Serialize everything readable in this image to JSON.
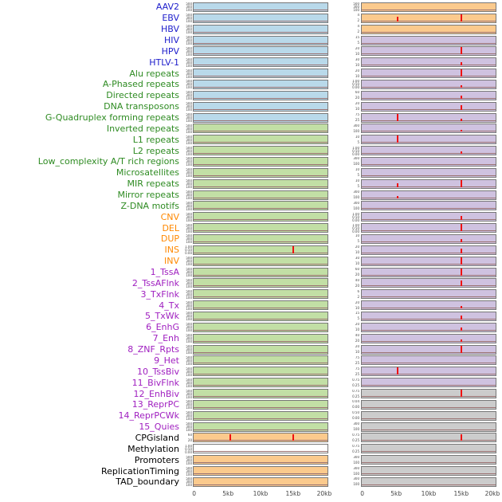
{
  "chart_data": {
    "type": "line",
    "description": "Genomic feature track figure: 44 labeled signal tracks in two panel columns over a 0-20kb window; red spikes mark feature peaks on flat near-zero baselines",
    "x_axis": {
      "ticks": [
        "0",
        "5kb",
        "10kb",
        "15kb",
        "20kb"
      ],
      "positions": [
        1,
        26,
        50,
        74,
        97
      ],
      "unit": "kb",
      "range_bp": [
        0,
        20000
      ]
    },
    "default_y_ticks": [
      "500",
      "300",
      "100"
    ],
    "colors": {
      "label": {
        "virus": "#2020cc",
        "repeat": "#2e8b22",
        "sv": "#ff8800",
        "chromatin": "#a020c0",
        "other": "#000000"
      },
      "bg": {
        "blue": "#b9d9ea",
        "green": "#c2dfa5",
        "orange": "#fbca8d",
        "purple": "#cfc2e0",
        "gray": "#cccccc",
        "white": "#ffffff"
      },
      "spike": "#ee1111",
      "baseline": "#9b7272",
      "panel_border": "#777777"
    },
    "groups": [
      {
        "name": "virus",
        "members": [
          "AAV2",
          "EBV",
          "HBV",
          "HIV",
          "HPV",
          "HTLV-1"
        ]
      },
      {
        "name": "repeat",
        "members": [
          "Alu repeats",
          "A-Phased repeats",
          "Directed repeats",
          "DNA transposons",
          "G-Quadruplex forming repeats",
          "Inverted repeats",
          "L1 repeats",
          "L2 repeats",
          "Low_complexity A/T rich regions",
          "Microsatellites",
          "MIR repeats",
          "Mirror repeats",
          "Z-DNA motifs"
        ]
      },
      {
        "name": "sv",
        "members": [
          "CNV",
          "DEL",
          "DUP",
          "INS",
          "INV"
        ]
      },
      {
        "name": "chromatin",
        "members": [
          "1_TssA",
          "2_TssAFlnk",
          "3_TxFlnk",
          "4_Tx",
          "5_TxWk",
          "6_EnhG",
          "7_Enh",
          "8_ZNF_Rpts",
          "9_Het",
          "10_TssBiv",
          "11_BivFlnk",
          "12_EnhBiv",
          "13_ReprPC",
          "14_ReprPCWk",
          "15_Quies"
        ]
      },
      {
        "name": "other",
        "members": [
          "CPGisland",
          "Methylation",
          "Promoters",
          "ReplicationTiming",
          "TAD_boundary"
        ]
      }
    ],
    "tracks": [
      {
        "l": "AAV2",
        "g": "virus",
        "lb": "blue",
        "rb": "orange",
        "rt": [
          "500",
          "300",
          "100"
        ],
        "ls": [],
        "rs": []
      },
      {
        "l": "EBV",
        "g": "virus",
        "lb": "blue",
        "rb": "orange",
        "rt": [
          "4",
          "2"
        ],
        "ls": [],
        "rs": [
          [
            26,
            55
          ],
          [
            74,
            92
          ]
        ]
      },
      {
        "l": "HBV",
        "g": "virus",
        "lb": "blue",
        "rb": "orange",
        "rt": [
          "4",
          "2"
        ],
        "ls": [],
        "rs": []
      },
      {
        "l": "HIV",
        "g": "virus",
        "lb": "blue",
        "rb": "purple",
        "rt": [
          "15",
          "5"
        ],
        "ls": [],
        "rs": []
      },
      {
        "l": "HPV",
        "g": "virus",
        "lb": "blue",
        "rb": "purple",
        "rt": [
          "20",
          "10"
        ],
        "ls": [],
        "rs": [
          [
            74,
            90
          ]
        ]
      },
      {
        "l": "HTLV-1",
        "g": "virus",
        "lb": "blue",
        "rb": "purple",
        "rt": [
          "30",
          "10"
        ],
        "ls": [],
        "rs": [
          [
            74,
            45
          ]
        ]
      },
      {
        "l": "Alu repeats",
        "g": "repeat",
        "lb": "blue",
        "rb": "purple",
        "rt": [
          "20",
          "10"
        ],
        "ls": [],
        "rs": [
          [
            74,
            92
          ]
        ]
      },
      {
        "l": "A-Phased repeats",
        "g": "repeat",
        "lb": "blue",
        "rb": "purple",
        "rt": [
          "1.00",
          "0.50",
          "0.00"
        ],
        "ls": [],
        "rs": [
          [
            74,
            30
          ]
        ]
      },
      {
        "l": "Directed repeats",
        "g": "repeat",
        "lb": "blue",
        "rb": "purple",
        "rt": [
          "60",
          "20"
        ],
        "ls": [],
        "rs": [
          [
            74,
            40
          ]
        ]
      },
      {
        "l": "DNA transposons",
        "g": "repeat",
        "lb": "blue",
        "rb": "purple",
        "rt": [
          "20",
          "10"
        ],
        "ls": [],
        "rs": [
          [
            74,
            55
          ]
        ]
      },
      {
        "l": "G-Quadruplex forming repeats",
        "g": "repeat",
        "lb": "blue",
        "rb": "purple",
        "rt": [
          "75",
          "25"
        ],
        "ls": [],
        "rs": [
          [
            26,
            85
          ],
          [
            74,
            25
          ]
        ]
      },
      {
        "l": "Inverted repeats",
        "g": "repeat",
        "lb": "green",
        "rb": "purple",
        "rt": [
          "300",
          "100"
        ],
        "ls": [],
        "rs": [
          [
            74,
            25
          ]
        ]
      },
      {
        "l": "L1 repeats",
        "g": "repeat",
        "lb": "green",
        "rb": "purple",
        "rt": [
          "10",
          "5"
        ],
        "ls": [],
        "rs": [
          [
            26,
            88
          ]
        ]
      },
      {
        "l": "L2 repeats",
        "g": "repeat",
        "lb": "green",
        "rb": "purple",
        "rt": [
          "1.00",
          "0.50",
          "0.00"
        ],
        "ls": [],
        "rs": [
          [
            74,
            30
          ]
        ]
      },
      {
        "l": "Low_complexity A/T rich regions",
        "g": "repeat",
        "lb": "green",
        "rb": "purple",
        "rt": [
          "300",
          "100"
        ],
        "ls": [],
        "rs": []
      },
      {
        "l": "Microsatellites",
        "g": "repeat",
        "lb": "green",
        "rb": "purple",
        "rt": [
          "10",
          "5"
        ],
        "ls": [],
        "rs": []
      },
      {
        "l": "MIR repeats",
        "g": "repeat",
        "lb": "green",
        "rb": "purple",
        "rt": [
          "10",
          "5"
        ],
        "ls": [],
        "rs": [
          [
            26,
            45
          ],
          [
            74,
            90
          ]
        ]
      },
      {
        "l": "Mirror repeats",
        "g": "repeat",
        "lb": "green",
        "rb": "purple",
        "rt": [
          "300",
          "100"
        ],
        "ls": [],
        "rs": [
          [
            26,
            30
          ]
        ]
      },
      {
        "l": "Z-DNA motifs",
        "g": "repeat",
        "lb": "green",
        "rb": "purple",
        "rt": [
          "300",
          "100"
        ],
        "ls": [],
        "rs": []
      },
      {
        "l": "CNV",
        "g": "sv",
        "lb": "green",
        "rb": "purple",
        "rt": [
          "1.00",
          "0.50",
          "0.00"
        ],
        "ls": [],
        "rs": [
          [
            74,
            50
          ]
        ]
      },
      {
        "l": "DEL",
        "g": "sv",
        "lb": "green",
        "rb": "purple",
        "rt": [
          "1.00",
          "0.50",
          "0.00"
        ],
        "ls": [],
        "rs": [
          [
            74,
            88
          ]
        ]
      },
      {
        "l": "DUP",
        "g": "sv",
        "lb": "green",
        "rb": "purple",
        "rt": [
          "10",
          "5"
        ],
        "ls": [],
        "rs": [
          [
            74,
            40
          ]
        ]
      },
      {
        "l": "INS",
        "g": "sv",
        "lb": "green",
        "lt": [
          "1.00",
          "0.50",
          "0.00"
        ],
        "rb": "purple",
        "rt": [
          "20",
          "10"
        ],
        "ls": [
          [
            74,
            85
          ]
        ],
        "rs": [
          [
            74,
            55
          ]
        ]
      },
      {
        "l": "INV",
        "g": "sv",
        "lb": "green",
        "rb": "purple",
        "rt": [
          "30",
          "10"
        ],
        "ls": [],
        "rs": [
          [
            74,
            88
          ]
        ]
      },
      {
        "l": "1_TssA",
        "g": "chromatin",
        "lb": "green",
        "rb": "purple",
        "rt": [
          "60",
          "20"
        ],
        "ls": [],
        "rs": [
          [
            74,
            90
          ]
        ]
      },
      {
        "l": "2_TssAFlnk",
        "g": "chromatin",
        "lb": "green",
        "rb": "purple",
        "rt": [
          "40",
          "20"
        ],
        "ls": [],
        "rs": [
          [
            74,
            70
          ]
        ]
      },
      {
        "l": "3_TxFlnk",
        "g": "chromatin",
        "lb": "green",
        "rb": "purple",
        "rt": [
          "6",
          "2"
        ],
        "ls": [],
        "rs": []
      },
      {
        "l": "4_Tx",
        "g": "chromatin",
        "lb": "green",
        "rb": "purple",
        "rt": [
          "20",
          "10"
        ],
        "ls": [],
        "rs": [
          [
            74,
            30
          ]
        ]
      },
      {
        "l": "5_TxWk",
        "g": "chromatin",
        "lb": "green",
        "rb": "purple",
        "rt": [
          "15",
          "5"
        ],
        "ls": [],
        "rs": [
          [
            74,
            50
          ]
        ]
      },
      {
        "l": "6_EnhG",
        "g": "chromatin",
        "lb": "green",
        "rb": "purple",
        "rt": [
          "20",
          "10"
        ],
        "ls": [],
        "rs": [
          [
            74,
            40
          ]
        ]
      },
      {
        "l": "7_Enh",
        "g": "chromatin",
        "lb": "green",
        "rb": "purple",
        "rt": [
          "40",
          "20"
        ],
        "ls": [],
        "rs": [
          [
            74,
            30
          ]
        ]
      },
      {
        "l": "8_ZNF_Rpts",
        "g": "chromatin",
        "lb": "green",
        "rb": "purple",
        "rt": [
          "20",
          "10"
        ],
        "ls": [],
        "rs": [
          [
            74,
            90
          ]
        ]
      },
      {
        "l": "9_Het",
        "g": "chromatin",
        "lb": "green",
        "rb": "purple",
        "rt": [
          "75",
          "25"
        ],
        "ls": [],
        "rs": []
      },
      {
        "l": "10_TssBiv",
        "g": "chromatin",
        "lb": "green",
        "rb": "purple",
        "rt": [
          "75",
          "25"
        ],
        "ls": [],
        "rs": [
          [
            26,
            90
          ]
        ]
      },
      {
        "l": "11_BivFlnk",
        "g": "chromatin",
        "lb": "green",
        "rb": "purple",
        "rt": [
          "0.75",
          "0.25"
        ],
        "ls": [],
        "rs": []
      },
      {
        "l": "12_EnhBiv",
        "g": "chromatin",
        "lb": "green",
        "rb": "gray",
        "rt": [
          "0.75",
          "0.25"
        ],
        "ls": [],
        "rs": [
          [
            74,
            90
          ]
        ]
      },
      {
        "l": "13_ReprPC",
        "g": "chromatin",
        "lb": "green",
        "rb": "gray",
        "rt": [
          "0.04",
          "0.00"
        ],
        "ls": [],
        "rs": []
      },
      {
        "l": "14_ReprPCWk",
        "g": "chromatin",
        "lb": "green",
        "rb": "gray",
        "rt": [
          "0.50",
          "0.00"
        ],
        "ls": [],
        "rs": []
      },
      {
        "l": "15_Quies",
        "g": "chromatin",
        "lb": "green",
        "rb": "gray",
        "rt": [
          "300",
          "100"
        ],
        "ls": [],
        "rs": []
      },
      {
        "l": "CPGisland",
        "g": "other",
        "lb": "orange",
        "lt": [
          "60",
          "20"
        ],
        "rb": "gray",
        "rt": [
          "0.75",
          "0.25"
        ],
        "ls": [
          [
            27,
            80
          ],
          [
            74,
            88
          ]
        ],
        "rs": [
          [
            74,
            80
          ]
        ]
      },
      {
        "l": "Methylation",
        "g": "other",
        "lb": "white",
        "lt": [
          "1.00",
          "0.50",
          "0.00"
        ],
        "rb": "gray",
        "rt": [
          "0.75",
          "0.25"
        ],
        "ls": [],
        "rs": []
      },
      {
        "l": "Promoters",
        "g": "other",
        "lb": "orange",
        "rb": "gray",
        "rt": [
          "300",
          "100"
        ],
        "ls": [],
        "rs": []
      },
      {
        "l": "ReplicationTiming",
        "g": "other",
        "lb": "orange",
        "rb": "gray",
        "rt": [
          "300",
          "100"
        ],
        "ls": [],
        "rs": []
      },
      {
        "l": "TAD_boundary",
        "g": "other",
        "lb": "orange",
        "rb": "gray",
        "rt": [
          "300",
          "100"
        ],
        "ls": [],
        "rs": []
      }
    ]
  }
}
